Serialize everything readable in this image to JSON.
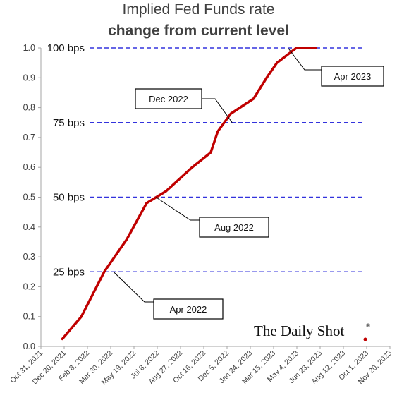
{
  "title": "Implied Fed Funds rate",
  "subtitle": "change from current level",
  "brand": {
    "name": "The Daily Shot",
    "mark": "®",
    "accent": "#c00000"
  },
  "colors": {
    "series": "#c00000",
    "reference": "#3333dd",
    "axis": "#a6a6a6"
  },
  "chart_data": {
    "type": "line",
    "title": "Implied Fed Funds rate",
    "subtitle": "change from current level",
    "xlabel": "",
    "ylabel": "",
    "ylim": [
      0,
      1.0
    ],
    "yticks": [
      0.0,
      0.1,
      0.2,
      0.3,
      0.4,
      0.5,
      0.6,
      0.7,
      0.8,
      0.9,
      1.0
    ],
    "ytick_labels": [
      "0.0",
      "0.1",
      "0.2",
      "0.3",
      "0.4",
      "0.5",
      "0.6",
      "0.7",
      "0.8",
      "0.9",
      "1.0"
    ],
    "xlim": [
      "2021-10-31",
      "2023-11-20"
    ],
    "xticks": [
      "2021-10-31",
      "2021-12-20",
      "2022-02-08",
      "2022-03-30",
      "2022-05-19",
      "2022-07-08",
      "2022-08-27",
      "2022-10-16",
      "2022-12-05",
      "2023-01-24",
      "2023-03-15",
      "2023-05-04",
      "2023-06-23",
      "2023-08-12",
      "2023-10-01",
      "2023-11-20"
    ],
    "xtick_labels": [
      "Oct 31, 2021",
      "Dec 20, 2021",
      "Feb 8, 2022",
      "Mar 30, 2022",
      "May 19, 2022",
      "Jul 8, 2022",
      "Aug 27, 2022",
      "Oct 16, 2022",
      "Dec 5, 2022",
      "Jan 24, 2023",
      "Mar 15, 2023",
      "May 4, 2023",
      "Jun 23, 2023",
      "Aug 12, 2023",
      "Oct 1, 2023",
      "Nov 20, 2023"
    ],
    "grid": false,
    "series": [
      {
        "color": "#c00000",
        "x": [
          "2021-12-16",
          "2022-01-26",
          "2022-03-16",
          "2022-05-04",
          "2022-06-15",
          "2022-07-27",
          "2022-09-21",
          "2022-10-31",
          "2022-11-15",
          "2022-12-13",
          "2023-01-31",
          "2023-02-28",
          "2023-03-22",
          "2023-05-03",
          "2023-06-14"
        ],
        "y": [
          0.025,
          0.1,
          0.25,
          0.36,
          0.48,
          0.52,
          0.6,
          0.65,
          0.72,
          0.78,
          0.83,
          0.9,
          0.95,
          1.0,
          1.0
        ]
      }
    ],
    "reference_lines": [
      {
        "y": 0.25,
        "label": "25 bps"
      },
      {
        "y": 0.5,
        "label": "50 bps"
      },
      {
        "y": 0.75,
        "label": "75 bps"
      },
      {
        "y": 1.0,
        "label": "100 bps"
      }
    ],
    "annotations": [
      {
        "text": "Apr 2022",
        "x": "2022-04-05",
        "y": 0.25
      },
      {
        "text": "Aug 2022",
        "x": "2022-07-05",
        "y": 0.5
      },
      {
        "text": "Dec 2022",
        "x": "2022-12-16",
        "y": 0.75
      },
      {
        "text": "Apr 2023",
        "x": "2023-04-15",
        "y": 1.0
      }
    ]
  }
}
